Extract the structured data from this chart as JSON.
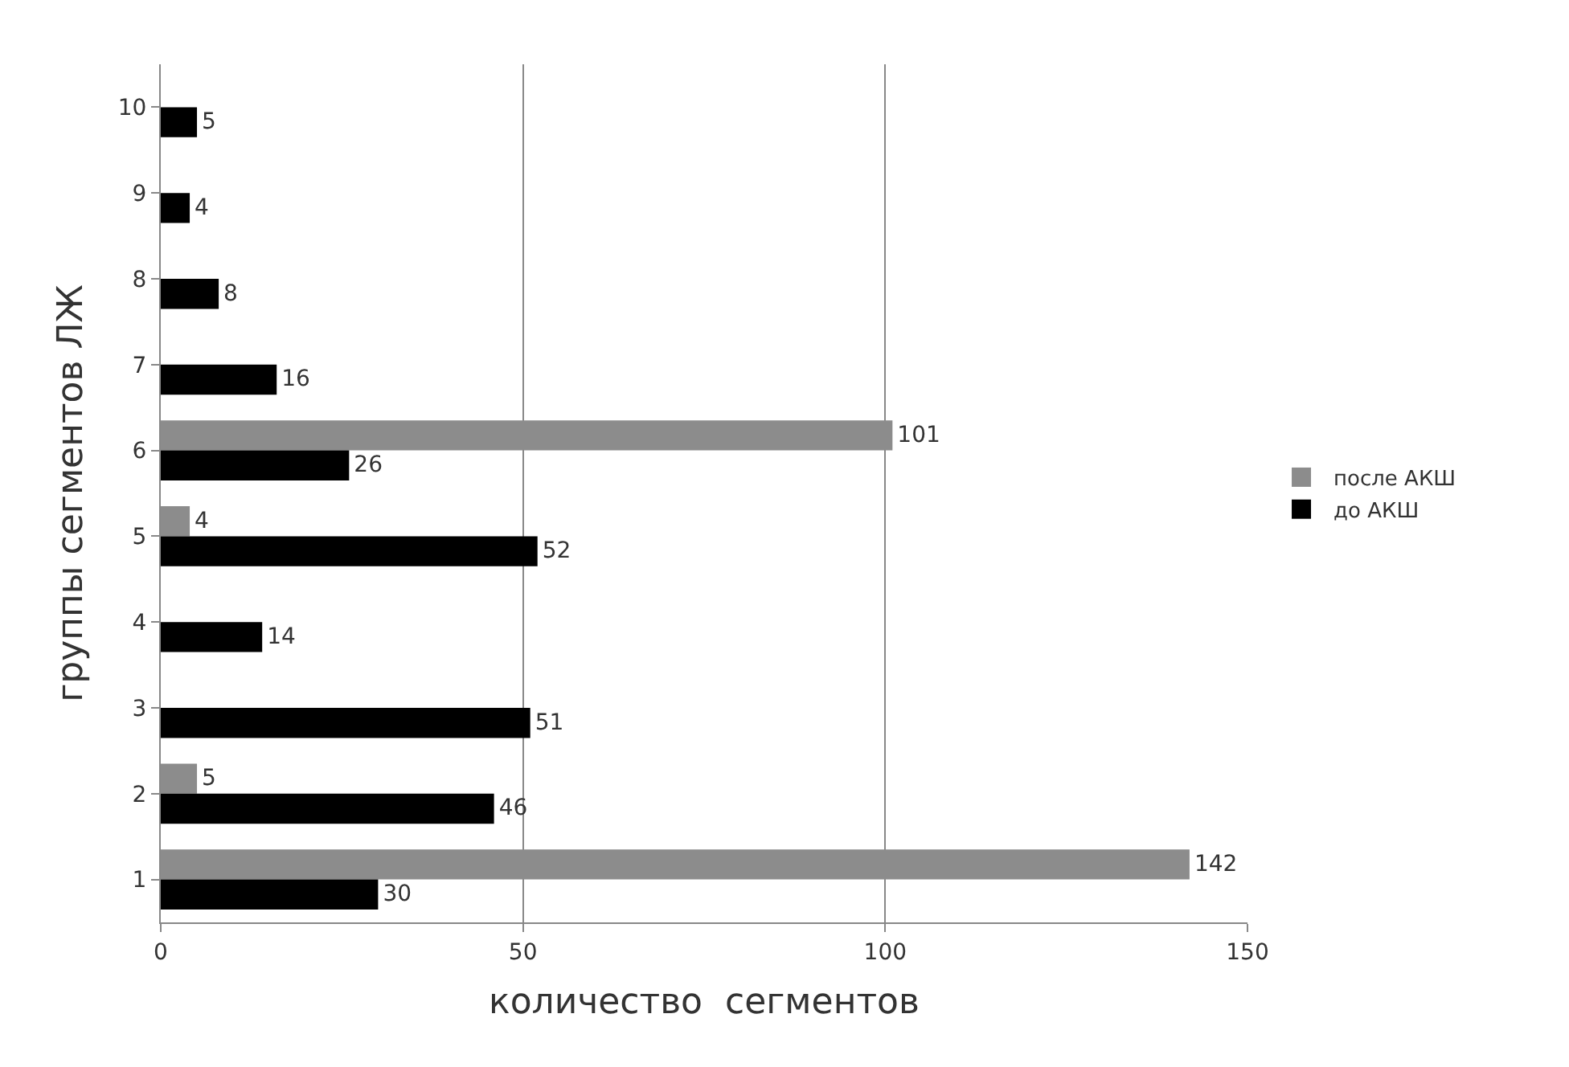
{
  "chart_data": {
    "type": "bar",
    "orientation": "horizontal",
    "xlabel": "количество  сегментов",
    "ylabel": "группы сегментов ЛЖ",
    "categories": [
      "10",
      "9",
      "8",
      "7",
      "6",
      "5",
      "4",
      "3",
      "2",
      "1"
    ],
    "series": [
      {
        "name": "после АКШ",
        "color": "#8c8c8c",
        "values": [
          null,
          null,
          null,
          null,
          101,
          4,
          null,
          null,
          5,
          142
        ]
      },
      {
        "name": "до АКШ",
        "color": "#000000",
        "values": [
          5,
          4,
          8,
          16,
          26,
          52,
          14,
          51,
          46,
          30
        ]
      }
    ],
    "xlim": [
      0,
      150
    ],
    "xticks": [
      0,
      50,
      100,
      150
    ],
    "grid": "x",
    "legend": "right",
    "data_labels": true
  }
}
